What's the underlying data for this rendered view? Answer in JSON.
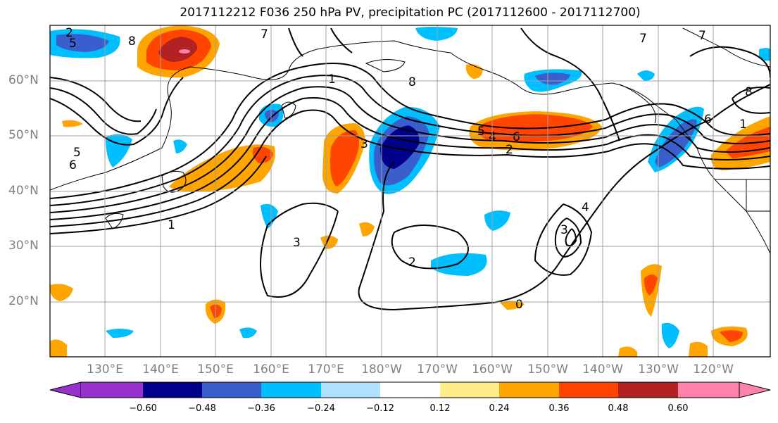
{
  "title": "2017112212 F036 250 hPa PV, precipitation PC (2017112600 - 2017112700)",
  "lat_labels": [
    "60°N",
    "50°N",
    "40°N",
    "30°N",
    "20°N"
  ],
  "lon_labels": [
    "130°E",
    "140°E",
    "150°E",
    "160°E",
    "170°E",
    "180°W",
    "170°W",
    "160°W",
    "150°W",
    "140°W",
    "130°W",
    "120°W"
  ],
  "colorbar": {
    "ticks": [
      "−0.60",
      "−0.48",
      "−0.36",
      "−0.24",
      "−0.12",
      "0.12",
      "0.24",
      "0.36",
      "0.48",
      "0.60"
    ],
    "colors": [
      "#9932cc",
      "#00008b",
      "#3a5fcd",
      "#00bfff",
      "#b0e2ff",
      "#ffffff",
      "#ffec8b",
      "#ffa500",
      "#ff4500",
      "#b22222",
      "#ff82ab"
    ]
  },
  "contour_labels": [
    "2",
    "5",
    "8",
    "7",
    "5",
    "6",
    "7",
    "1",
    "8",
    "5",
    "4",
    "6",
    "2",
    "3",
    "1",
    "3",
    "4",
    "3",
    "2",
    "0",
    "6",
    "1",
    "7",
    "8"
  ],
  "colors": {
    "axis_label": "#808080",
    "contour": "#000000",
    "grid": "#a0a0a0"
  }
}
